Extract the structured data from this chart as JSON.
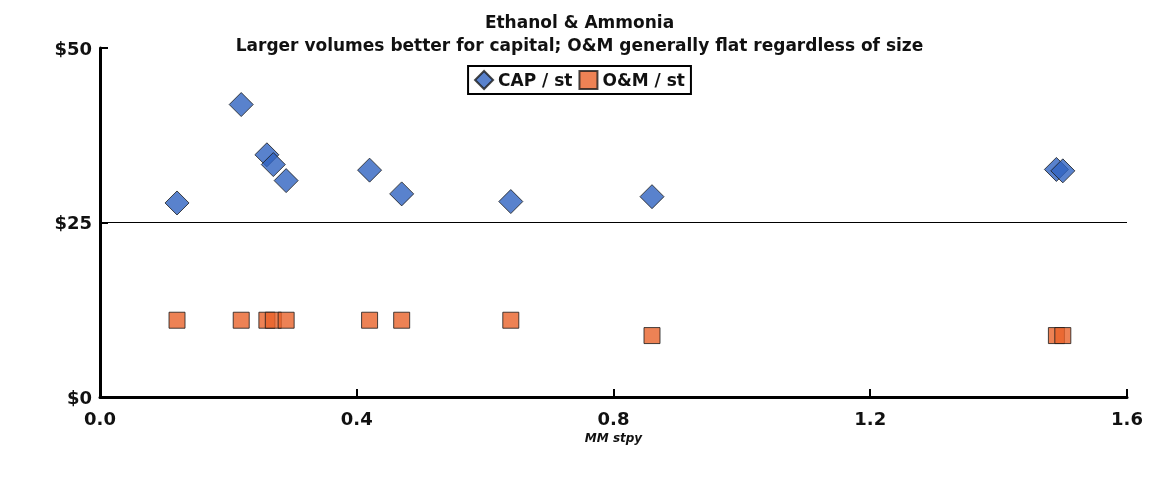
{
  "chart_data": {
    "type": "scatter",
    "title": "Ethanol & Ammonia",
    "subtitle": "Larger volumes better for capital; O&M generally flat regardless of size",
    "xlabel": "MM stpy",
    "x": [
      0.12,
      0.22,
      0.26,
      0.27,
      0.29,
      0.42,
      0.47,
      0.64,
      0.86,
      1.49,
      1.5
    ],
    "series": [
      {
        "name": "CAP / st",
        "color": "#2f63c0",
        "marker": "diamond",
        "values": [
          27.8,
          41.9,
          34.7,
          33.3,
          31.0,
          32.5,
          29.1,
          28.0,
          28.7,
          32.6,
          32.4
        ]
      },
      {
        "name": "O&M / st",
        "color": "#e8632a",
        "marker": "square",
        "values": [
          11,
          11,
          11,
          11,
          11,
          11,
          11,
          11,
          8.8,
          8.8,
          8.8
        ]
      }
    ],
    "xlim": [
      0,
      1.6
    ],
    "xticks": [
      {
        "value": 0,
        "label": "0.0"
      },
      0.4,
      0.8,
      1.2,
      1.6
    ],
    "ylim": [
      0,
      50
    ],
    "yticks": [
      {
        "value": 0,
        "label": "$0"
      },
      {
        "value": 25,
        "label": "$25"
      },
      {
        "value": 50,
        "label": "$50"
      }
    ],
    "ref_lines": [
      {
        "axis": "y",
        "value": 25,
        "label": null
      }
    ],
    "grid": false,
    "legend": "top"
  }
}
